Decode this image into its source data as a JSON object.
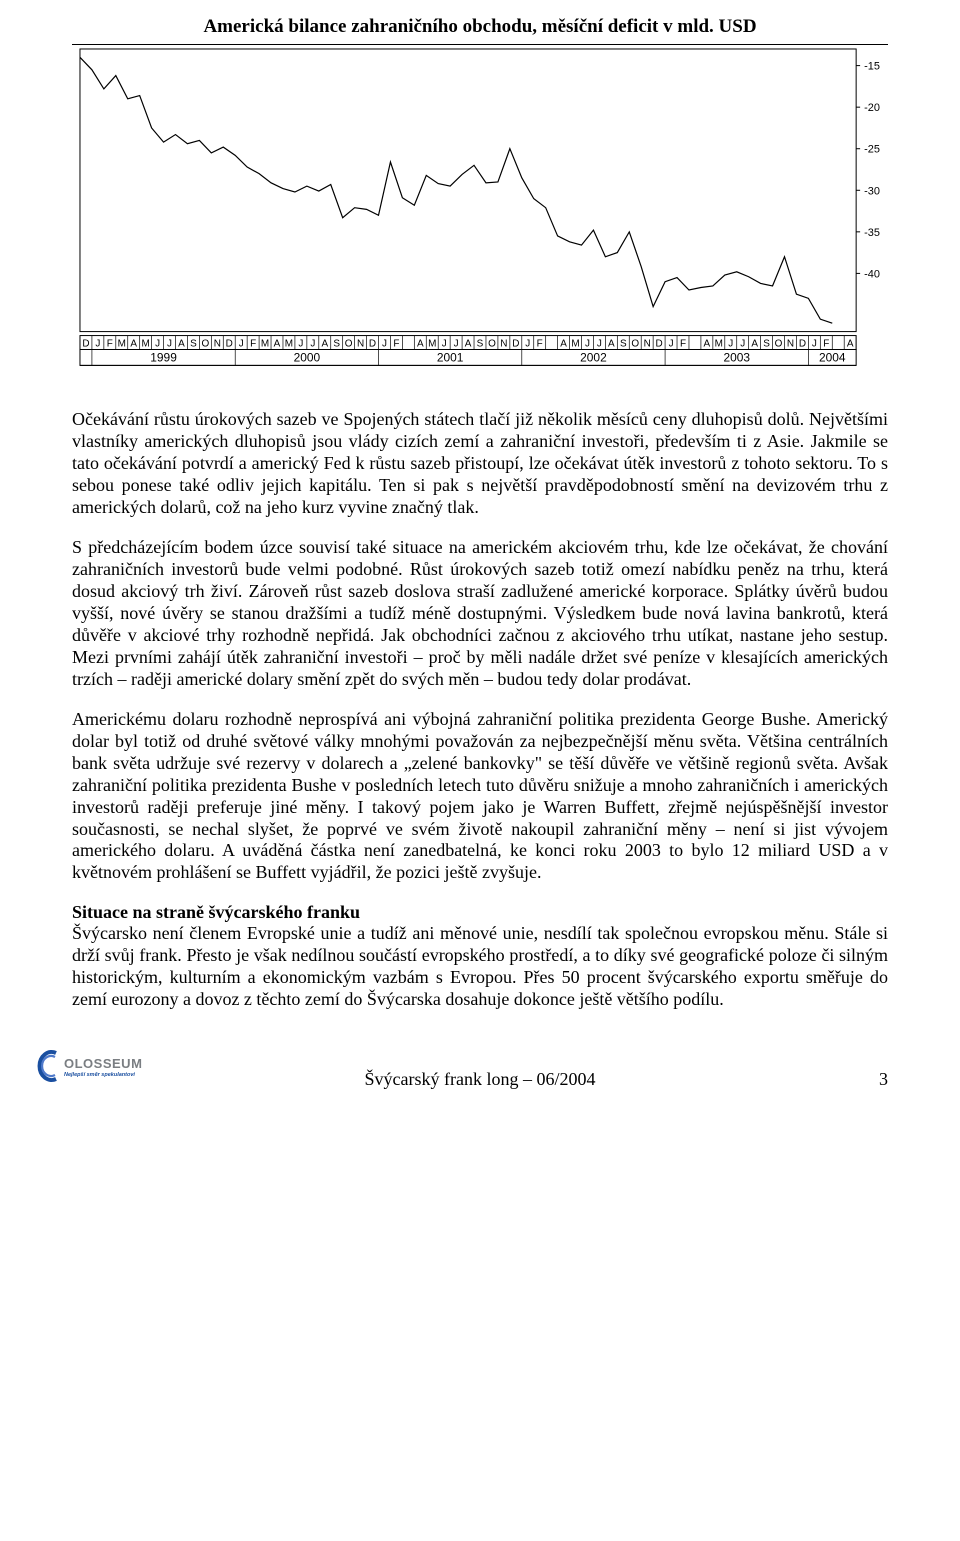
{
  "chart": {
    "type": "line",
    "title": "Americká bilance zahraničního obchodu, měsíční deficit v mld. USD",
    "background_color": "#ffffff",
    "frame_stroke": "#000000",
    "line_stroke": "#000000",
    "line_width": 1.2,
    "months": [
      "D",
      "J",
      "F",
      "M",
      "A",
      "M",
      "J",
      "J",
      "A",
      "S",
      "O",
      "N",
      "D",
      "J",
      "F",
      "M",
      "A",
      "M",
      "J",
      "J",
      "A",
      "S",
      "O",
      "N",
      "D",
      "J",
      "F",
      "",
      "A",
      "M",
      "J",
      "J",
      "A",
      "S",
      "O",
      "N",
      "D",
      "J",
      "F",
      "",
      "A",
      "M",
      "J",
      "J",
      "A",
      "S",
      "O",
      "N",
      "D",
      "J",
      "F",
      "",
      "A",
      "M",
      "J",
      "J",
      "A",
      "S",
      "O",
      "N",
      "D",
      "J",
      "F",
      "",
      "A"
    ],
    "years": [
      "1999",
      "2000",
      "2001",
      "2002",
      "2003",
      "2004"
    ],
    "ytick_labels": [
      "-15",
      "-20",
      "-25",
      "-30",
      "-35",
      "-40"
    ],
    "ylim": [
      -47,
      -13
    ],
    "xlim": [
      0,
      65
    ],
    "axis_fontsize": 10,
    "year_fontsize": 12,
    "series": [
      {
        "x": 0,
        "y": -14.0
      },
      {
        "x": 1,
        "y": -15.5
      },
      {
        "x": 2,
        "y": -17.8
      },
      {
        "x": 3,
        "y": -16.2
      },
      {
        "x": 4,
        "y": -19.0
      },
      {
        "x": 5,
        "y": -18.6
      },
      {
        "x": 6,
        "y": -22.5
      },
      {
        "x": 7,
        "y": -24.2
      },
      {
        "x": 8,
        "y": -23.3
      },
      {
        "x": 9,
        "y": -24.4
      },
      {
        "x": 10,
        "y": -24.0
      },
      {
        "x": 11,
        "y": -25.5
      },
      {
        "x": 12,
        "y": -24.8
      },
      {
        "x": 13,
        "y": -25.8
      },
      {
        "x": 14,
        "y": -27.2
      },
      {
        "x": 15,
        "y": -28.0
      },
      {
        "x": 16,
        "y": -29.1
      },
      {
        "x": 17,
        "y": -29.8
      },
      {
        "x": 18,
        "y": -30.2
      },
      {
        "x": 19,
        "y": -29.5
      },
      {
        "x": 20,
        "y": -30.1
      },
      {
        "x": 21,
        "y": -29.3
      },
      {
        "x": 22,
        "y": -33.3
      },
      {
        "x": 23,
        "y": -32.1
      },
      {
        "x": 24,
        "y": -32.3
      },
      {
        "x": 25,
        "y": -33.0
      },
      {
        "x": 26,
        "y": -26.6
      },
      {
        "x": 27,
        "y": -30.9
      },
      {
        "x": 28,
        "y": -31.8
      },
      {
        "x": 29,
        "y": -28.2
      },
      {
        "x": 30,
        "y": -29.2
      },
      {
        "x": 31,
        "y": -29.5
      },
      {
        "x": 32,
        "y": -28.1
      },
      {
        "x": 33,
        "y": -27.0
      },
      {
        "x": 34,
        "y": -29.1
      },
      {
        "x": 35,
        "y": -29.0
      },
      {
        "x": 36,
        "y": -25.0
      },
      {
        "x": 37,
        "y": -28.5
      },
      {
        "x": 38,
        "y": -31.0
      },
      {
        "x": 39,
        "y": -32.1
      },
      {
        "x": 40,
        "y": -35.5
      },
      {
        "x": 41,
        "y": -36.2
      },
      {
        "x": 42,
        "y": -36.6
      },
      {
        "x": 43,
        "y": -34.8
      },
      {
        "x": 44,
        "y": -38.0
      },
      {
        "x": 45,
        "y": -37.5
      },
      {
        "x": 46,
        "y": -35.0
      },
      {
        "x": 47,
        "y": -39.2
      },
      {
        "x": 48,
        "y": -44.0
      },
      {
        "x": 49,
        "y": -41.0
      },
      {
        "x": 50,
        "y": -40.5
      },
      {
        "x": 51,
        "y": -42.0
      },
      {
        "x": 52,
        "y": -41.7
      },
      {
        "x": 53,
        "y": -41.5
      },
      {
        "x": 54,
        "y": -40.2
      },
      {
        "x": 55,
        "y": -39.8
      },
      {
        "x": 56,
        "y": -40.4
      },
      {
        "x": 57,
        "y": -41.2
      },
      {
        "x": 58,
        "y": -41.5
      },
      {
        "x": 59,
        "y": -38.0
      },
      {
        "x": 60,
        "y": -42.5
      },
      {
        "x": 61,
        "y": -43.0
      },
      {
        "x": 62,
        "y": -45.5
      },
      {
        "x": 63,
        "y": -46.0
      }
    ]
  },
  "paragraphs": {
    "p1": "Očekávání růstu úrokových sazeb ve Spojených státech tlačí již několik měsíců ceny dluhopisů dolů. Největšími vlastníky amerických dluhopisů jsou vlády cizích zemí a zahraniční investoři, především ti z Asie. Jakmile se tato očekávání potvrdí a americký Fed k růstu sazeb přistoupí, lze očekávat útěk investorů z tohoto sektoru. To s sebou ponese také odliv jejich kapitálu. Ten si pak s největší pravděpodobností smění na devizovém trhu z amerických dolarů, což na jeho kurz vyvine značný tlak.",
    "p2": "S předcházejícím bodem úzce souvisí také situace na americkém akciovém trhu, kde lze očekávat, že chování zahraničních investorů bude velmi podobné. Růst úrokových sazeb totiž omezí nabídku peněz na trhu, která dosud akciový trh živí. Zároveň růst sazeb doslova straší zadlužené americké korporace. Splátky úvěrů budou vyšší, nové úvěry se stanou dražšími a tudíž méně dostupnými. Výsledkem bude nová lavina bankrotů, která důvěře v akciové trhy rozhodně nepřidá. Jak obchodníci začnou z akciového trhu utíkat, nastane jeho sestup. Mezi prvními zahájí útěk zahraniční investoři – proč by měli nadále držet své peníze v klesajících amerických trzích – raději americké dolary smění zpět do svých měn – budou tedy dolar prodávat.",
    "p3": "Americkému dolaru rozhodně neprospívá ani výbojná zahraniční politika prezidenta George Bushe. Americký dolar byl totiž od druhé světové války mnohými považován za nejbezpečnější měnu světa. Většina centrálních bank světa udržuje své rezervy v dolarech a „zelené bankovky\" se těší důvěře ve většině regionů světa. Avšak zahraniční politika prezidenta Bushe v posledních letech tuto důvěru snižuje a mnoho zahraničních i amerických investorů raději preferuje jiné měny. I takový pojem jako je Warren Buffett, zřejmě nejúspěšnější investor současnosti, se nechal slyšet, že poprvé ve svém životě nakoupil zahraniční měny – není si jist vývojem amerického dolaru. A uváděná částka není zanedbatelná, ke konci roku 2003 to bylo 12 miliard USD a v květnovém prohlášení se Buffett vyjádřil, že pozici ještě zvyšuje.",
    "section_heading": "Situace na straně švýcarského franku",
    "p4": "Švýcarsko není členem Evropské unie a tudíž ani měnové unie, nesdílí tak společnou evropskou měnu. Stále si drží svůj frank. Přesto je však nedílnou součástí evropského prostředí, a to díky své geografické poloze či silným historickým, kulturním a ekonomickým vazbám s Evropou. Přes 50 procent švýcarského exportu směřuje do zemí eurozony a dovoz z těchto zemí do Švýcarska dosahuje dokonce ještě většího podílu."
  },
  "footer": {
    "doc_title": "Švýcarský frank long – 06/2004",
    "page_number": "3",
    "logo_text": "OLOSSEUM",
    "logo_sub": "Nejlepší směr spekulantovi",
    "logo_primary_color": "#1a4fa0",
    "logo_text_color": "#7a7e82"
  }
}
